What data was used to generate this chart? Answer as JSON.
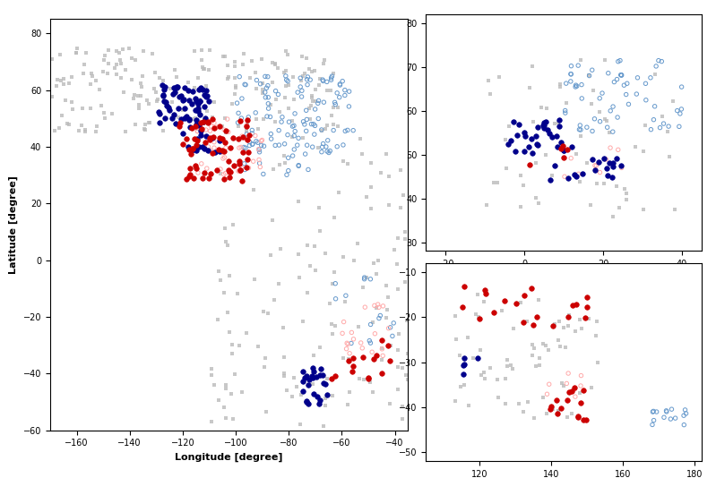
{
  "main_map": {
    "xlim": [
      -170,
      -35
    ],
    "ylim": [
      -60,
      85
    ],
    "xticks": [
      -160,
      -140,
      -120,
      -100,
      -80,
      -60,
      -40
    ],
    "yticks": [
      -60,
      -40,
      -20,
      0,
      20,
      40,
      60,
      80
    ],
    "xlabel": "Longitude [degree]",
    "ylabel": "Latitude [degree]"
  },
  "europe_map": {
    "xlim": [
      -25,
      45
    ],
    "ylim": [
      28,
      82
    ],
    "xticks": [
      -20,
      0,
      20,
      40
    ],
    "yticks": [
      30,
      40,
      50,
      60,
      70,
      80
    ]
  },
  "australia_map": {
    "xlim": [
      105,
      182
    ],
    "ylim": [
      -52,
      -8
    ],
    "xticks": [
      120,
      140,
      160,
      180
    ],
    "yticks": [
      -50,
      -40,
      -30,
      -20,
      -10
    ]
  },
  "colors": {
    "dark_blue": "#00008B",
    "light_blue": "#6699CC",
    "light_red": "#FFAAAA",
    "dark_red": "#CC0000",
    "inconclusive": "#BBBBBB"
  },
  "axes_positions": {
    "main": [
      0.07,
      0.1,
      0.5,
      0.86
    ],
    "europe": [
      0.595,
      0.475,
      0.385,
      0.495
    ],
    "australia": [
      0.595,
      0.035,
      0.385,
      0.415
    ]
  },
  "marker_size_dark": 12,
  "marker_size_light": 8,
  "marker_size_gray": 4
}
